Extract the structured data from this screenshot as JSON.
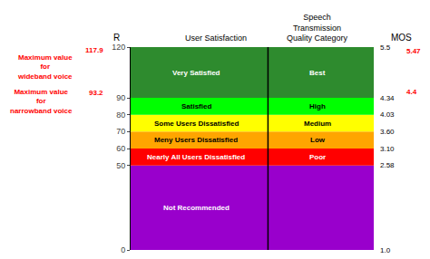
{
  "chart_data": {
    "type": "bands",
    "ylim": [
      0,
      120
    ],
    "yticks": [
      0,
      50,
      60,
      70,
      80,
      90,
      120
    ],
    "grid": false,
    "tick_labels": "y",
    "y_label": "R",
    "right_label": "MOS",
    "column_headers": [
      "User Satisfaction",
      "Speech\nTransmission\nQuality Category"
    ],
    "bands": [
      {
        "ymin": 0,
        "ymax": 50,
        "color": "#9900CC",
        "label_left": "Not Recommended",
        "text_color": "white"
      },
      {
        "ymin": 50,
        "ymax": 60,
        "color": "#FF0000",
        "label_left": "Nearly All Users Dissatisfied",
        "label_right": "Poor",
        "text_color": "white"
      },
      {
        "ymin": 60,
        "ymax": 70,
        "color": "#FFA500",
        "label_left": "Meny Users Dissatisfied",
        "label_right": "Low",
        "text_color": "black"
      },
      {
        "ymin": 70,
        "ymax": 80,
        "color": "#FFFF00",
        "label_left": "Some Users Dissatisfied",
        "label_right": "Medium",
        "text_color": "black"
      },
      {
        "ymin": 80,
        "ymax": 90,
        "color": "#00FF00",
        "label_left": "Satisfied",
        "label_right": "High",
        "text_color": "black"
      },
      {
        "ymin": 90,
        "ymax": 120,
        "color": "#2E8B2E",
        "label_left": "Very Satisfied",
        "label_right": "Best",
        "text_color": "white"
      }
    ],
    "left_marks": [
      {
        "y": 117.9,
        "text": "117.9",
        "color": "#FF0000"
      },
      {
        "y": 93.2,
        "text": "93.2",
        "color": "#FF0000"
      }
    ],
    "left_notes": [
      {
        "y": 108,
        "text": "Maximum value\nfor\nwideband voice",
        "color": "#FF0000"
      },
      {
        "y": 88,
        "text": "Maximum value\nfor\nnarrowband voice",
        "color": "#FF0000"
      }
    ],
    "mos_vals": [
      {
        "y": 120,
        "text": "5.5",
        "color": "black"
      },
      {
        "y": 117.5,
        "text": "5.47",
        "color": "#FF0000"
      },
      {
        "y": 93.5,
        "text": "4.4",
        "color": "#FF0000"
      },
      {
        "y": 90,
        "text": "4.34",
        "color": "black"
      },
      {
        "y": 80,
        "text": "4.03",
        "color": "black"
      },
      {
        "y": 70,
        "text": "3.60",
        "color": "black"
      },
      {
        "y": 60,
        "text": "3.10",
        "color": "black"
      },
      {
        "y": 50,
        "text": "2.58",
        "color": "black"
      },
      {
        "y": 0,
        "text": "1.0",
        "color": "black"
      }
    ]
  }
}
